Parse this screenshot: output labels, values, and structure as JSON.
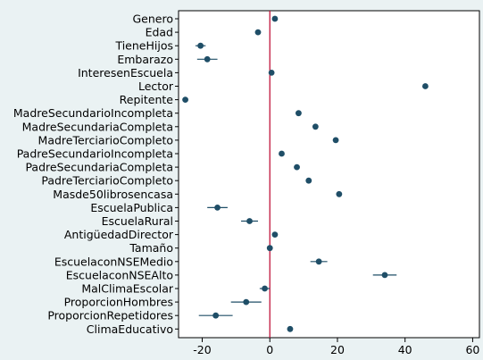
{
  "chart_data": {
    "type": "scatter",
    "title": "",
    "xlabel": "",
    "ylabel": "",
    "xlim": [
      -27,
      62
    ],
    "xticks": [
      -20,
      0,
      20,
      40,
      60
    ],
    "reference_line_x": 0,
    "grid": false,
    "colors": {
      "point": "#1f4e67",
      "reference": "#c0143c",
      "plot_bg": "#ffffff",
      "page_bg": "#eaf2f3"
    },
    "categories": [
      "Genero",
      "Edad",
      "TieneHijos",
      "Embarazo",
      "InteresenEscuela",
      "Lector",
      "Repitente",
      "MadreSecundarioIncompleta",
      "MadreSecundariaCompleta",
      "MadreTerciarioCompleto",
      "PadreSecundarioIncompleta",
      "PadreSecundariaCompleta",
      "PadreTerciarioCompleto",
      "Masde50librosencasa",
      "EscuelaPublica",
      "EscuelaRural",
      "AntigüedadDirector",
      "Tamaño",
      "EscuelaconNSEMedio",
      "EscuelaconNSEAlto",
      "MalClimaEscolar",
      "ProporcionHombres",
      "ProporcionRepetidores",
      "ClimaEducativo"
    ],
    "estimates": [
      1.5,
      -3.5,
      -20.5,
      -18.5,
      0.5,
      46,
      -25,
      8.5,
      13.5,
      19.5,
      3.5,
      8,
      11.5,
      20.5,
      -15.5,
      -6,
      1.5,
      0,
      14.5,
      34,
      -1.5,
      -7,
      -16,
      6
    ],
    "ci_low": [
      0.8,
      -4.2,
      -22,
      -21.5,
      0,
      45.5,
      -25.5,
      8,
      12.8,
      18.8,
      2.7,
      7.3,
      10.7,
      19.7,
      -18.5,
      -8.5,
      0.7,
      -0.5,
      12,
      30.5,
      -3,
      -11.5,
      -21,
      5.3
    ],
    "ci_high": [
      2.2,
      -2.8,
      -19,
      -15.5,
      1,
      46.5,
      -24.5,
      9,
      14.2,
      20.2,
      4.3,
      8.7,
      12.3,
      21.3,
      -12.5,
      -3.5,
      2.3,
      0.5,
      17,
      37.5,
      0,
      -2.5,
      -11,
      6.7
    ]
  }
}
